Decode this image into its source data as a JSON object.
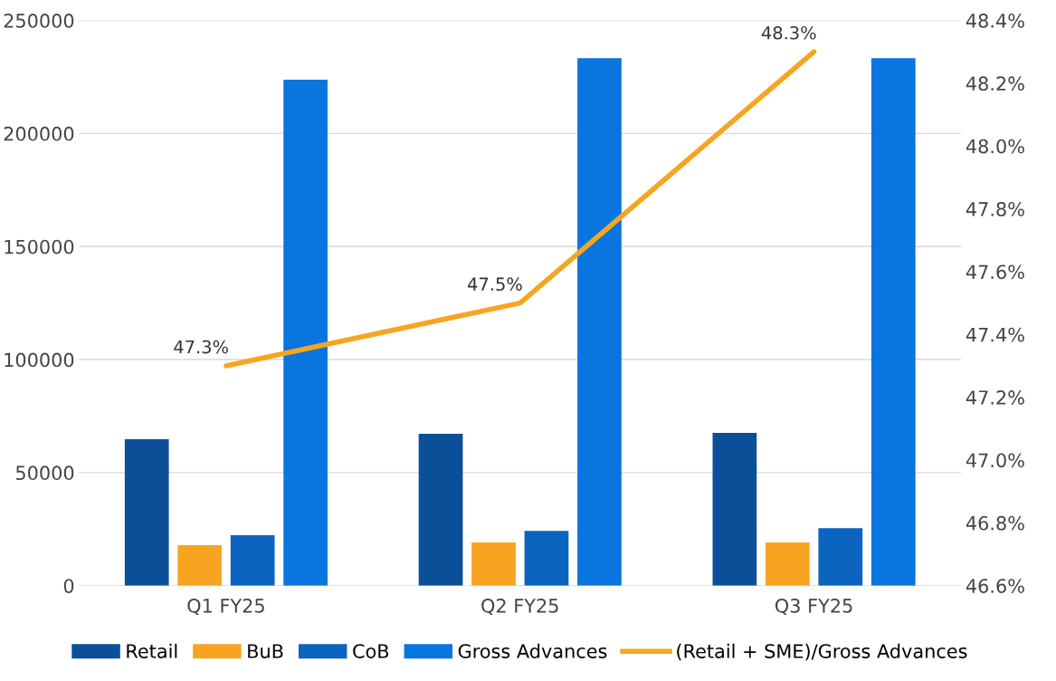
{
  "chart_data": {
    "type": "bar",
    "categories": [
      "Q1 FY25",
      "Q2 FY25",
      "Q3 FY25"
    ],
    "series": [
      {
        "name": "Retail",
        "color": "#0b4f98",
        "values": [
          64800,
          67200,
          67600
        ]
      },
      {
        "name": "BuB",
        "color": "#f7a520",
        "values": [
          17900,
          19100,
          19100
        ]
      },
      {
        "name": "CoB",
        "color": "#0a64c0",
        "values": [
          22300,
          24200,
          25400
        ]
      },
      {
        "name": "Gross Advances",
        "color": "#0876de",
        "values": [
          223800,
          233300,
          233300
        ]
      },
      {
        "name": "(Retail + SME)/Gross Advances",
        "type": "line",
        "axis": "y2",
        "color": "#f7a520",
        "values": [
          47.3,
          47.5,
          48.3
        ],
        "value_labels": [
          "47.3%",
          "47.5%",
          "48.3%"
        ]
      }
    ],
    "ylim": [
      0,
      250000
    ],
    "yticks": [
      0,
      50000,
      100000,
      150000,
      200000,
      250000
    ],
    "y2lim": [
      46.6,
      48.4
    ],
    "y2ticks": [
      {
        "value": 46.6,
        "label": "46.6%"
      },
      {
        "value": 46.8,
        "label": "46.8%"
      },
      {
        "value": 47.0,
        "label": "47.0%"
      },
      {
        "value": 47.2,
        "label": "47.2%"
      },
      {
        "value": 47.4,
        "label": "47.4%"
      },
      {
        "value": 47.6,
        "label": "47.6%"
      },
      {
        "value": 47.8,
        "label": "47.8%"
      },
      {
        "value": 48.0,
        "label": "48.0%"
      },
      {
        "value": 48.2,
        "label": "48.2%"
      },
      {
        "value": 48.4,
        "label": "48.4%"
      }
    ],
    "grid": "y",
    "legend": "bottom",
    "marker": "none",
    "line_style": "solid"
  }
}
